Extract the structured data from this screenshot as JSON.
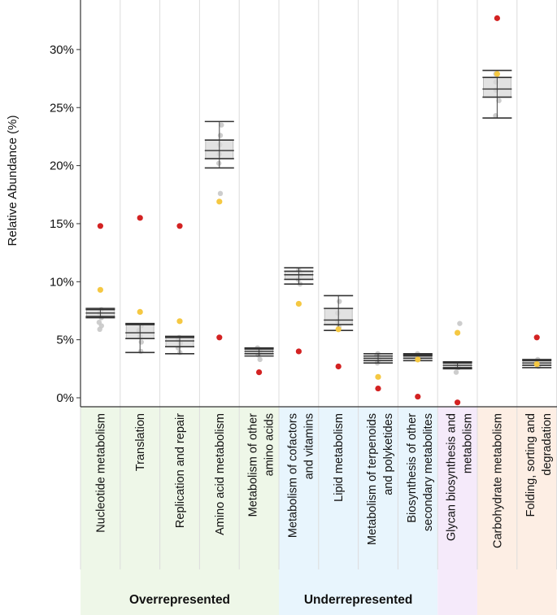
{
  "chart_data": {
    "type": "box",
    "ylabel": "Relative Abundance (%)",
    "ylim": [
      -0.7,
      34.5
    ],
    "yticks": [
      0,
      5,
      10,
      15,
      20,
      25,
      30
    ],
    "ytick_labels": [
      "0%",
      "5%",
      "10%",
      "15%",
      "20%",
      "25%",
      "30%"
    ],
    "colors": {
      "red": "#d32222",
      "yellow": "#f5c842",
      "grey": "#c8c8c8",
      "over": "#eef7e8",
      "under": "#e8f5fd",
      "glycan": "#f5eafa",
      "carb": "#fdeee4"
    },
    "categories": [
      {
        "label": "Nucleotide metabolism",
        "group": "over",
        "box": {
          "whisker_low": 6.9,
          "q1": 7.0,
          "median": 7.3,
          "q3": 7.6,
          "whisker_high": 7.7
        },
        "red": 14.8,
        "yellow": 9.3,
        "grey": [
          5.9,
          6.2,
          6.5,
          6.9,
          7.3,
          7.6
        ]
      },
      {
        "label": "Translation",
        "group": "over",
        "box": {
          "whisker_low": 3.9,
          "q1": 5.1,
          "median": 5.6,
          "q3": 6.3,
          "whisker_high": 6.4
        },
        "red": 15.5,
        "yellow": 7.4,
        "grey": [
          4.0,
          4.8,
          5.3,
          5.8,
          6.2
        ]
      },
      {
        "label": "Replication and repair",
        "group": "over",
        "box": {
          "whisker_low": 3.8,
          "q1": 4.4,
          "median": 4.9,
          "q3": 5.2,
          "whisker_high": 5.3
        },
        "red": 14.8,
        "yellow": 6.6,
        "grey": [
          3.9,
          4.3,
          4.7,
          5.0,
          5.2
        ]
      },
      {
        "label": "Amino acid metabolism",
        "group": "over",
        "box": {
          "whisker_low": 19.8,
          "q1": 20.6,
          "median": 21.3,
          "q3": 22.2,
          "whisker_high": 23.8
        },
        "red": 5.2,
        "yellow": 16.9,
        "grey": [
          17.6,
          20.2,
          21.0,
          21.8,
          22.6,
          23.5
        ]
      },
      {
        "label": "Metabolism of other amino acids",
        "group": "over",
        "box": {
          "whisker_low": 3.6,
          "q1": 3.8,
          "median": 4.0,
          "q3": 4.2,
          "whisker_high": 4.3
        },
        "red": 2.2,
        "yellow": null,
        "grey": [
          3.3,
          3.7,
          4.0,
          4.3
        ]
      },
      {
        "label": "Metabolism of cofactors and vitamins",
        "group": "under",
        "box": {
          "whisker_low": 9.8,
          "q1": 10.2,
          "median": 10.6,
          "q3": 10.9,
          "whisker_high": 11.2
        },
        "red": 4.0,
        "yellow": 8.1,
        "grey": [
          9.8,
          10.2,
          10.6,
          11.0
        ]
      },
      {
        "label": "Lipid metabolism",
        "group": "under",
        "box": {
          "whisker_low": 5.8,
          "q1": 6.3,
          "median": 6.7,
          "q3": 7.7,
          "whisker_high": 8.8
        },
        "red": 2.7,
        "yellow": 5.9,
        "grey": [
          6.1,
          6.6,
          7.3,
          8.3
        ]
      },
      {
        "label": "Metabolism of terpenoids and polyketides",
        "group": "under",
        "box": {
          "whisker_low": 3.0,
          "q1": 3.2,
          "median": 3.4,
          "q3": 3.6,
          "whisker_high": 3.8
        },
        "red": 0.8,
        "yellow": 1.8,
        "grey": [
          3.0,
          3.3,
          3.6,
          3.8
        ]
      },
      {
        "label": "Biosynthesis of other secondary metabolites",
        "group": "under",
        "box": {
          "whisker_low": 3.2,
          "q1": 3.4,
          "median": 3.6,
          "q3": 3.7,
          "whisker_high": 3.8
        },
        "red": 0.1,
        "yellow": 3.3,
        "grey": [
          3.4,
          3.6,
          3.8
        ]
      },
      {
        "label": "Glycan biosynthesis and metabolism",
        "group": "glycan",
        "box": {
          "whisker_low": 2.5,
          "q1": 2.6,
          "median": 2.8,
          "q3": 3.0,
          "whisker_high": 3.1
        },
        "red": -0.4,
        "yellow": 5.6,
        "grey": [
          2.2,
          2.6,
          2.9,
          6.4
        ]
      },
      {
        "label": "Carbohydrate metabolism",
        "group": "carb",
        "box": {
          "whisker_low": 24.1,
          "q1": 25.9,
          "median": 26.6,
          "q3": 27.6,
          "whisker_high": 28.2
        },
        "red": 32.7,
        "yellow": 27.9,
        "grey": [
          24.3,
          25.6,
          26.5,
          27.2,
          27.9
        ]
      },
      {
        "label": "Folding, sorting and degradation",
        "group": "carb",
        "box": {
          "whisker_low": 2.6,
          "q1": 2.8,
          "median": 3.0,
          "q3": 3.2,
          "whisker_high": 3.3
        },
        "red": 5.2,
        "yellow": 2.9,
        "grey": [
          2.7,
          3.0,
          3.3
        ]
      }
    ],
    "category_lines": [
      [
        "Nucleotide metabolism"
      ],
      [
        "Translation"
      ],
      [
        "Replication and repair"
      ],
      [
        "Amino acid metabolism"
      ],
      [
        "Metabolism of other",
        "amino acids"
      ],
      [
        "Metabolism of cofactors",
        "and vitamins"
      ],
      [
        "Lipid metabolism"
      ],
      [
        "Metabolism of terpenoids",
        "and polyketides"
      ],
      [
        "Biosynthesis of other",
        "secondary metabolites"
      ],
      [
        "Glycan biosynthesis and",
        "metabolism"
      ],
      [
        "Carbohydrate metabolism"
      ],
      [
        "Folding, sorting and",
        "degradation"
      ]
    ],
    "group_labels": [
      {
        "label": "Overrepresented",
        "from": 0,
        "to": 4
      },
      {
        "label": "Underrepresented",
        "from": 5,
        "to": 8
      }
    ]
  }
}
